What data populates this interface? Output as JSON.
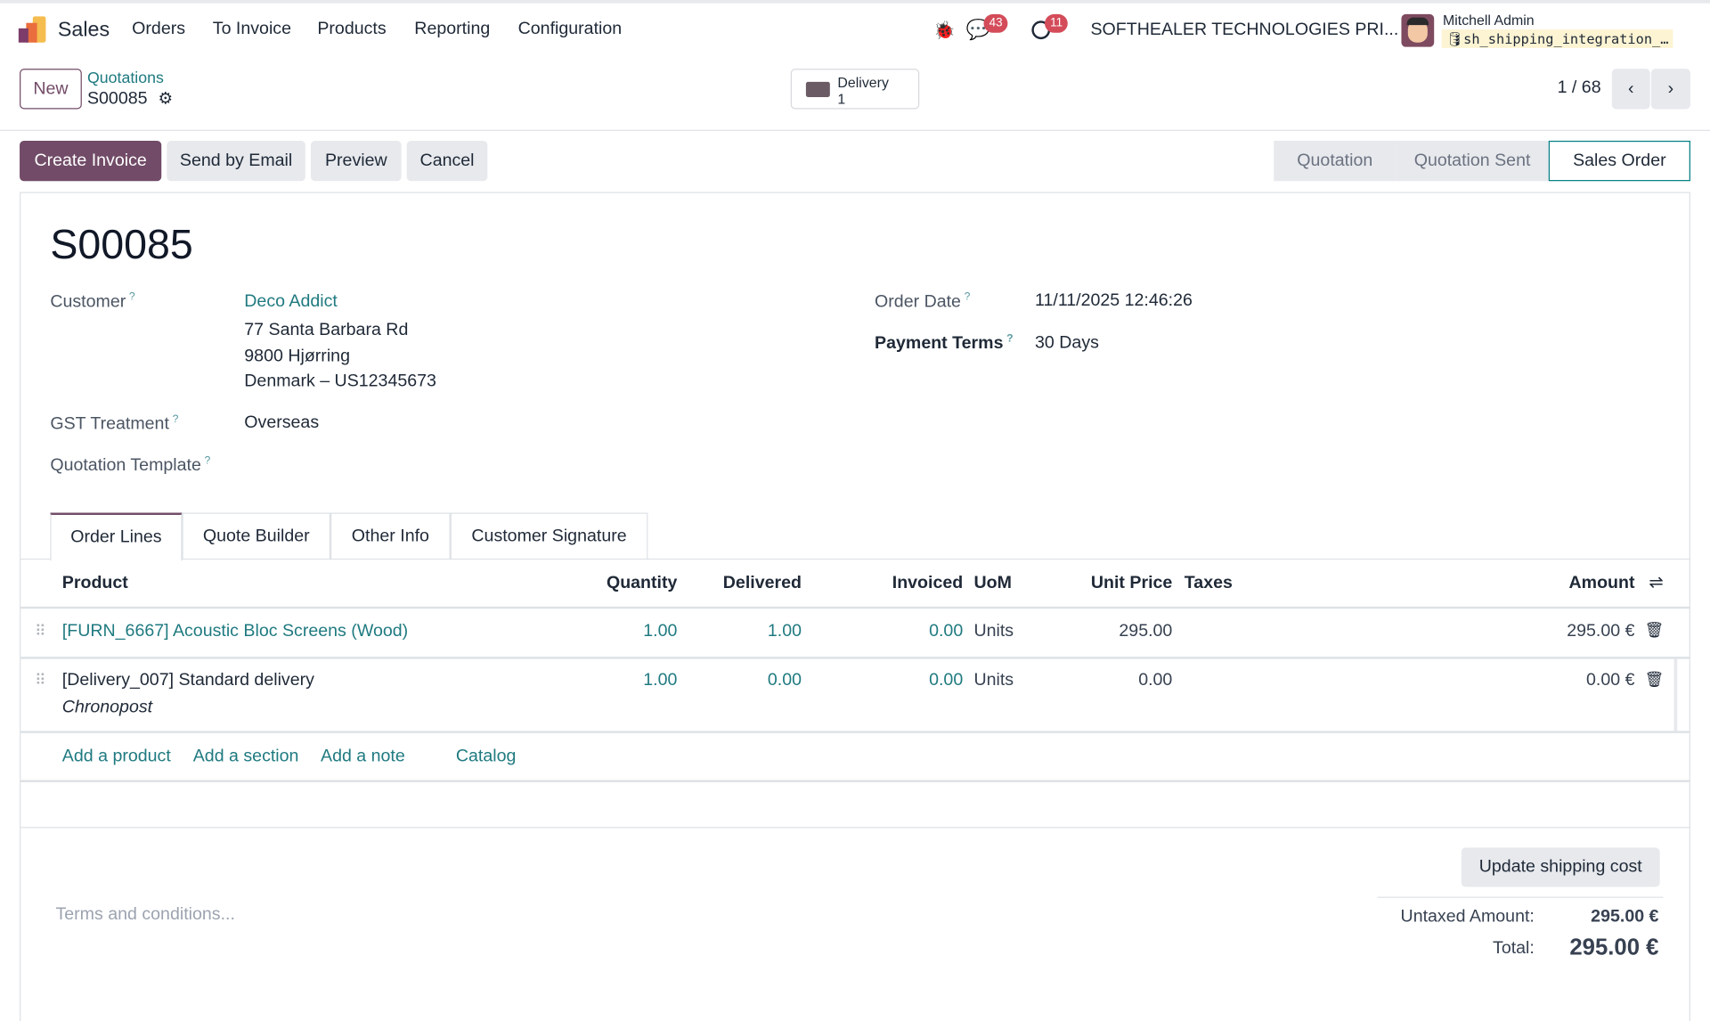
{
  "navbar": {
    "app": "Sales",
    "menu": [
      "Orders",
      "To Invoice",
      "Products",
      "Reporting",
      "Configuration"
    ],
    "messages_count": "43",
    "activities_count": "11",
    "company": "SOFTHEALER TECHNOLOGIES PRI...",
    "user": "Mitchell Admin",
    "database": "sh_shipping_integration_…"
  },
  "control": {
    "new_label": "New",
    "breadcrumb_parent": "Quotations",
    "breadcrumb_current": "S00085",
    "smart_button": {
      "label": "Delivery",
      "count": "1"
    },
    "pager": "1 / 68"
  },
  "actions": [
    "Create Invoice",
    "Send by Email",
    "Preview",
    "Cancel"
  ],
  "statusbar": {
    "stages": [
      "Quotation",
      "Quotation Sent",
      "Sales Order"
    ],
    "active": "Sales Order"
  },
  "form": {
    "title": "S00085",
    "customer_label": "Customer",
    "customer": "Deco Addict",
    "address": [
      "77 Santa Barbara Rd",
      "9800 Hjørring",
      "Denmark – US12345673"
    ],
    "gst_label": "GST Treatment",
    "gst": "Overseas",
    "template_label": "Quotation Template",
    "order_date_label": "Order Date",
    "order_date": "11/11/2025 12:46:26",
    "payment_terms_label": "Payment Terms",
    "payment_terms": "30 Days",
    "help": "?"
  },
  "tabs": [
    "Order Lines",
    "Quote Builder",
    "Other Info",
    "Customer Signature"
  ],
  "lines": {
    "headers": [
      "Product",
      "Quantity",
      "Delivered",
      "Invoiced",
      "UoM",
      "Unit Price",
      "Taxes",
      "Amount"
    ],
    "rows": [
      {
        "product": "[FURN_6667] Acoustic Bloc Screens (Wood)",
        "qty": "1.00",
        "delivered": "1.00",
        "invoiced": "0.00",
        "uom": "Units",
        "price": "295.00",
        "taxes": "",
        "amount": "295.00 €",
        "note": ""
      },
      {
        "product": "[Delivery_007] Standard delivery",
        "qty": "1.00",
        "delivered": "0.00",
        "invoiced": "0.00",
        "uom": "Units",
        "price": "0.00",
        "taxes": "",
        "amount": "0.00 €",
        "note": "Chronopost"
      }
    ],
    "add_links": [
      "Add a product",
      "Add a section",
      "Add a note",
      "Catalog"
    ]
  },
  "footer": {
    "terms_placeholder": "Terms and conditions...",
    "update_shipping": "Update shipping cost",
    "untaxed_label": "Untaxed Amount:",
    "untaxed": "295.00 €",
    "total_label": "Total:",
    "total": "295.00 €"
  },
  "colors": {
    "primary": "#714b67",
    "link": "#017e84",
    "badge": "#d44c59"
  }
}
